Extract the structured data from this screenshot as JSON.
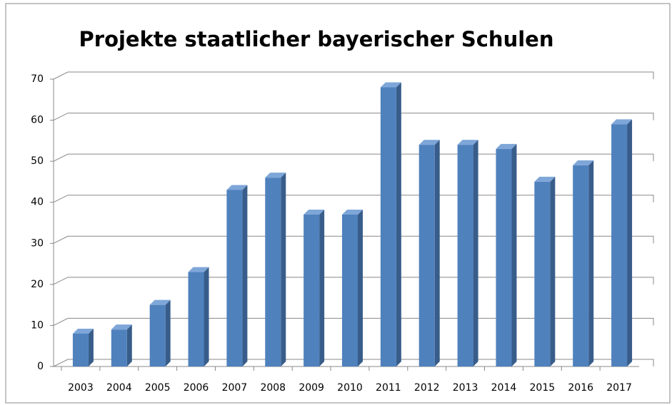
{
  "chart_data": {
    "type": "bar",
    "title": "Projekte staatlicher bayerischer Schulen",
    "categories": [
      "2003",
      "2004",
      "2005",
      "2006",
      "2007",
      "2008",
      "2009",
      "2010",
      "2011",
      "2012",
      "2013",
      "2014",
      "2015",
      "2016",
      "2017"
    ],
    "values": [
      8,
      9,
      15,
      23,
      43,
      46,
      37,
      37,
      68,
      54,
      54,
      53,
      45,
      49,
      59
    ],
    "color": "#4f81bd",
    "ylim": [
      0,
      70
    ],
    "yticks": [
      0,
      10,
      20,
      30,
      40,
      50,
      60,
      70
    ],
    "grid": true
  }
}
